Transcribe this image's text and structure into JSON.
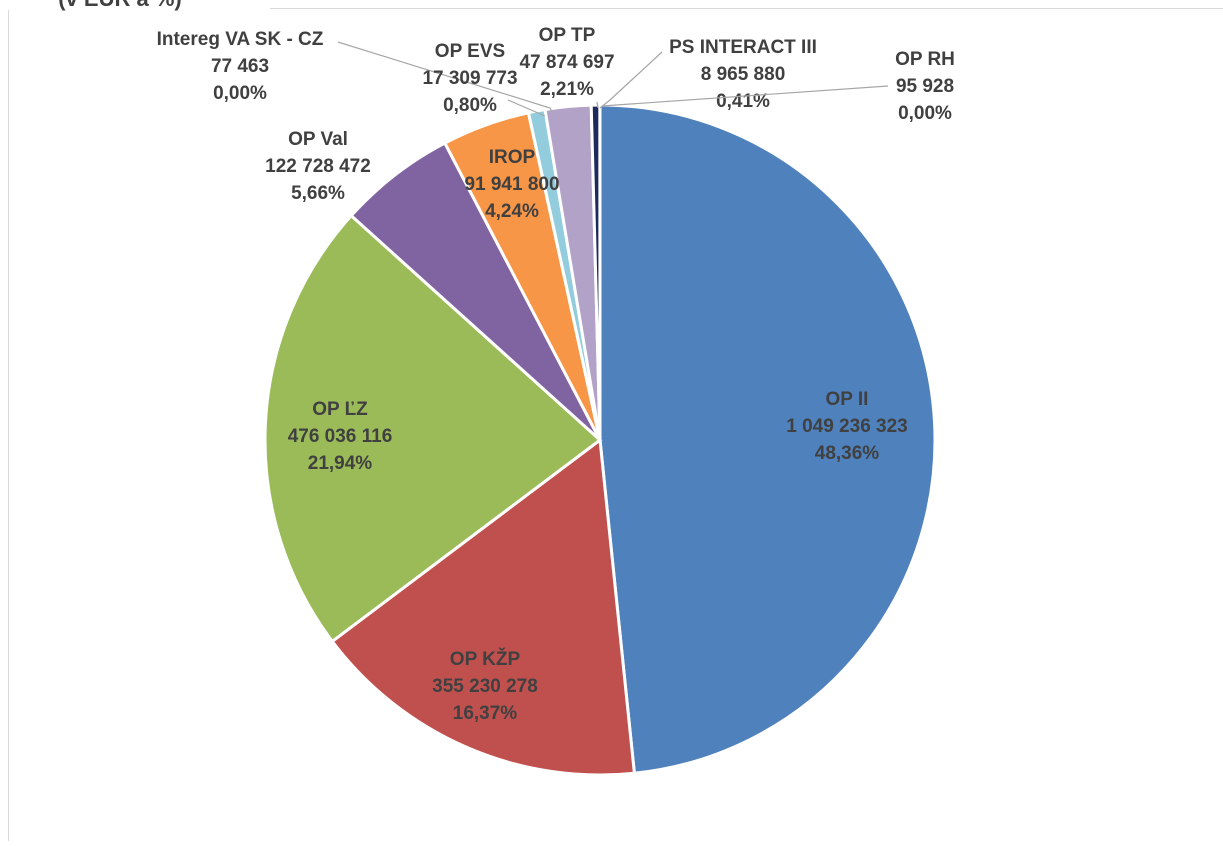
{
  "chart_data": {
    "type": "pie",
    "title": "(v EUR a %)",
    "categories": [
      "OP II",
      "OP KŽP",
      "OP ĽZ",
      "OP Val",
      "IROP",
      "Intereg VA SK - CZ",
      "OP EVS",
      "OP TP",
      "PS INTERACT III",
      "OP RH"
    ],
    "values": [
      1049236323,
      355230278,
      476036116,
      122728472,
      91941800,
      77463,
      17309773,
      47874697,
      8965880,
      95928
    ],
    "value_labels": [
      "1 049 236 323",
      "355 230 278",
      "476 036 116",
      "122 728 472",
      "91 941 800",
      "77 463",
      "17 309 773",
      "47 874 697",
      "8 965 880",
      "95 928"
    ],
    "percent_labels": [
      "48,36%",
      "16,37%",
      "21,94%",
      "5,66%",
      "4,24%",
      "0,00%",
      "0,80%",
      "2,21%",
      "0,41%",
      "0,00%"
    ],
    "colors": [
      "#4f81bd",
      "#c0504d",
      "#9bbb59",
      "#8064a2",
      "#f79646",
      "#2c4d75",
      "#93cddd",
      "#b3a2c7",
      "#1f2a5c",
      "#7f7f7f"
    ]
  }
}
